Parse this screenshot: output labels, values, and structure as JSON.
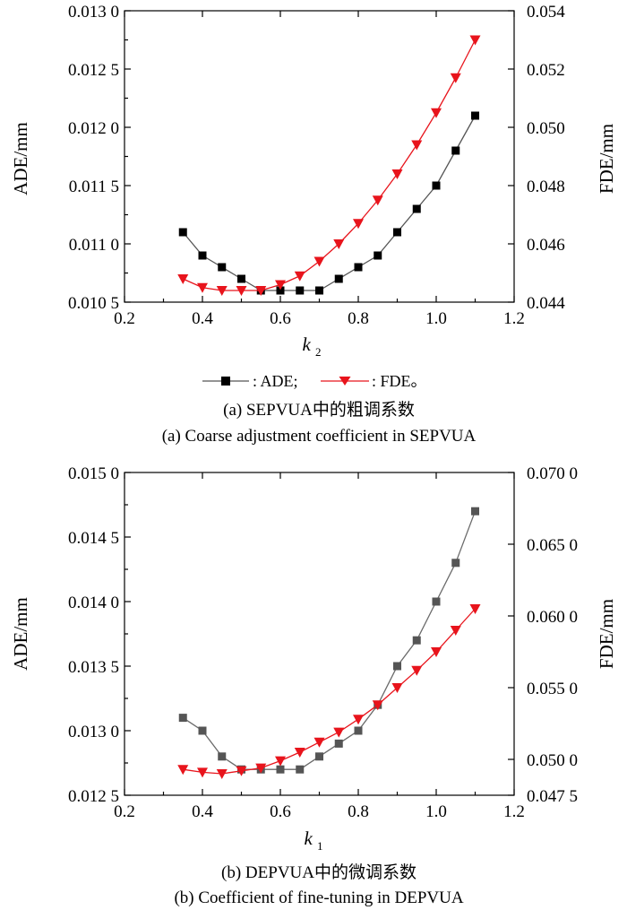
{
  "chart_data": [
    {
      "type": "line",
      "xlabel": "k",
      "xlabel_sub": "2",
      "ylabel": "ADE/mm",
      "y2label": "FDE/mm",
      "xlim": [
        0.2,
        1.2
      ],
      "ylim": [
        0.0105,
        0.013
      ],
      "y2lim": [
        0.044,
        0.054
      ],
      "x_ticks": [
        0.2,
        0.4,
        0.6,
        0.8,
        1.0,
        1.2
      ],
      "x_tick_labels": [
        "0.2",
        "0.4",
        "0.6",
        "0.8",
        "1.0",
        "1.2"
      ],
      "y_ticks": [
        0.0105,
        0.011,
        0.0115,
        0.012,
        0.0125,
        0.013
      ],
      "y_tick_labels": [
        "0.010 5",
        "0.011 0",
        "0.011 5",
        "0.012 0",
        "0.012 5",
        "0.013 0"
      ],
      "y2_ticks": [
        0.044,
        0.046,
        0.048,
        0.05,
        0.052,
        0.054
      ],
      "y2_tick_labels": [
        "0.044",
        "0.046",
        "0.048",
        "0.050",
        "0.052",
        "0.054"
      ],
      "x": [
        0.35,
        0.4,
        0.45,
        0.5,
        0.55,
        0.6,
        0.65,
        0.7,
        0.75,
        0.8,
        0.85,
        0.9,
        0.95,
        1.0,
        1.05,
        1.1
      ],
      "series": [
        {
          "name": "ADE",
          "axis": "left",
          "marker": "square",
          "color": "#000000",
          "line_color": "#555555",
          "values": [
            0.0111,
            0.0109,
            0.0108,
            0.0107,
            0.0106,
            0.0106,
            0.0106,
            0.0106,
            0.0107,
            0.0108,
            0.0109,
            0.0111,
            0.0113,
            0.0115,
            0.0118,
            0.0121
          ]
        },
        {
          "name": "FDE",
          "axis": "right",
          "marker": "triangle-down",
          "color": "#e8141c",
          "line_color": "#e8141c",
          "values": [
            0.0448,
            0.0445,
            0.0444,
            0.0444,
            0.0444,
            0.0446,
            0.0449,
            0.0454,
            0.046,
            0.0467,
            0.0475,
            0.0484,
            0.0494,
            0.0505,
            0.0517,
            0.053
          ]
        }
      ],
      "legend": {
        "placement": "below",
        "items": [
          {
            "series": "ADE",
            "label": ": ADE;"
          },
          {
            "series": "FDE",
            "label": ": FDE。"
          }
        ]
      },
      "caption_zh": "(a) SEPVUA中的粗调系数",
      "caption_en": "(a) Coarse adjustment coefficient in SEPVUA"
    },
    {
      "type": "line",
      "xlabel": "k",
      "xlabel_sub": "1",
      "ylabel": "ADE/mm",
      "y2label": "FDE/mm",
      "xlim": [
        0.2,
        1.2
      ],
      "ylim": [
        0.0125,
        0.015
      ],
      "y2lim": [
        0.0475,
        0.07
      ],
      "x_ticks": [
        0.2,
        0.4,
        0.6,
        0.8,
        1.0,
        1.2
      ],
      "x_tick_labels": [
        "0.2",
        "0.4",
        "0.6",
        "0.8",
        "1.0",
        "1.2"
      ],
      "y_ticks": [
        0.0125,
        0.013,
        0.0135,
        0.014,
        0.0145,
        0.015
      ],
      "y_tick_labels": [
        "0.012 5",
        "0.013 0",
        "0.013 5",
        "0.014 0",
        "0.014 5",
        "0.015 0"
      ],
      "y2_ticks": [
        0.0475,
        0.05,
        0.055,
        0.06,
        0.065,
        0.07
      ],
      "y2_tick_labels": [
        "0.047 5",
        "0.050 0",
        "0.055 0",
        "0.060 0",
        "0.065 0",
        "0.070 0"
      ],
      "x": [
        0.35,
        0.4,
        0.45,
        0.5,
        0.55,
        0.6,
        0.65,
        0.7,
        0.75,
        0.8,
        0.85,
        0.9,
        0.95,
        1.0,
        1.05,
        1.1
      ],
      "series": [
        {
          "name": "ADE",
          "axis": "left",
          "marker": "square",
          "color": "#555555",
          "line_color": "#6a6a6a",
          "values": [
            0.0131,
            0.013,
            0.0128,
            0.0127,
            0.0127,
            0.0127,
            0.0127,
            0.0128,
            0.0129,
            0.013,
            0.0132,
            0.0135,
            0.0137,
            0.014,
            0.0143,
            0.0147
          ]
        },
        {
          "name": "FDE",
          "axis": "right",
          "marker": "triangle-down",
          "color": "#e8141c",
          "line_color": "#e8141c",
          "values": [
            0.0493,
            0.0491,
            0.049,
            0.0492,
            0.0494,
            0.0499,
            0.0505,
            0.0512,
            0.0519,
            0.0528,
            0.0538,
            0.055,
            0.0562,
            0.0575,
            0.059,
            0.0605
          ]
        }
      ],
      "caption_zh": "(b) DEPVUA中的微调系数",
      "caption_en": "(b) Coefficient of fine-tuning in DEPVUA"
    }
  ]
}
